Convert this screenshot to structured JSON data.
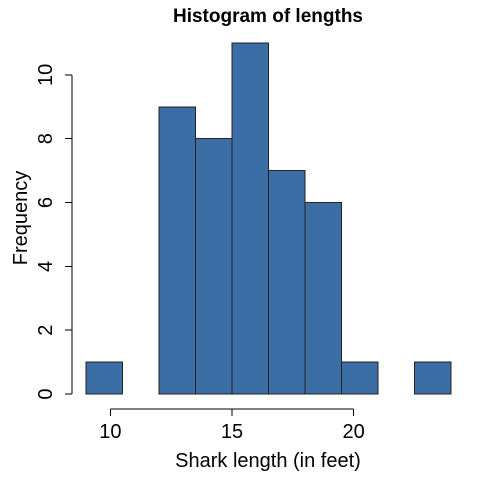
{
  "chart_data": {
    "type": "bar",
    "title": "Histogram of lengths",
    "xlabel": "Shark length (in feet)",
    "ylabel": "Frequency",
    "bin_edges": [
      9,
      10.5,
      12,
      13.5,
      15,
      16.5,
      18,
      19.5,
      21,
      22.5,
      24
    ],
    "values": [
      1,
      0,
      9,
      8,
      11,
      7,
      6,
      1,
      0,
      1
    ],
    "xlim": [
      9,
      24
    ],
    "ylim": [
      0,
      11
    ],
    "x_ticks": [
      10,
      15,
      20
    ],
    "y_ticks": [
      0,
      2,
      4,
      6,
      8,
      10
    ],
    "bar_color": "#3a6ea5",
    "bar_edge_color": "#222222",
    "grid": false
  }
}
